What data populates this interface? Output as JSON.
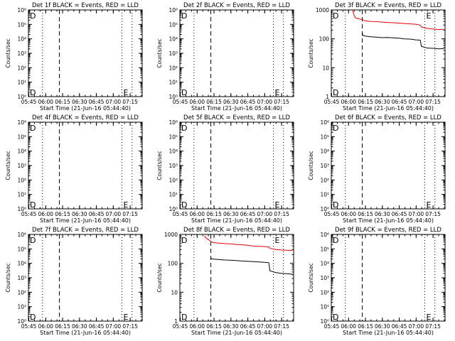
{
  "common": {
    "xlabel": "Start Time (21-Jun-16 05:44:40)",
    "ylabel": "Counts/sec",
    "xticks": [
      "05:45",
      "06:00",
      "06:15",
      "06:30",
      "06:45",
      "07:00",
      "07:15"
    ],
    "xtick_minutes": [
      0.33,
      15.33,
      30.33,
      45.33,
      60.33,
      75.33,
      90.33
    ],
    "xlim_minutes": [
      0,
      101
    ],
    "log_ticks_exponent": [
      "10⁰",
      "10¹",
      "10²",
      "10³",
      "10⁴",
      "10⁵",
      "10⁶"
    ],
    "log_ticks_plain": [
      "1",
      "10",
      "100",
      "1000"
    ],
    "marker_D": "D",
    "marker_E": "E",
    "colors": {
      "events": "#000000",
      "lld": "#dd0000",
      "axes": "#000000"
    },
    "vlines_dotted_minutes": [
      12.5,
      83.0,
      92.0
    ],
    "vline_dashed_minute": 27.5
  },
  "chart_data": [
    {
      "type": "line",
      "title": "Det 1f BLACK = Events, RED = LLD",
      "yscale": "log",
      "ylim": [
        1,
        1000000
      ],
      "tick_style": "exponent",
      "series": []
    },
    {
      "type": "line",
      "title": "Det 2f BLACK = Events, RED = LLD",
      "yscale": "log",
      "ylim": [
        1,
        1000000
      ],
      "tick_style": "exponent",
      "series": []
    },
    {
      "type": "line",
      "title": "Det 3f BLACK = Events, RED = LLD",
      "yscale": "log",
      "ylim": [
        1,
        1000
      ],
      "tick_style": "plain",
      "series": [
        {
          "color": "#000000",
          "x": [
            27.5,
            28,
            30,
            35,
            40,
            45,
            50,
            55,
            60,
            65,
            70,
            75,
            79,
            80,
            85,
            90,
            95,
            100
          ],
          "y": [
            160,
            130,
            125,
            118,
            115,
            110,
            112,
            108,
            105,
            100,
            98,
            92,
            90,
            55,
            48,
            47,
            45,
            46
          ]
        },
        {
          "color": "#dd0000",
          "x": [
            19,
            20,
            21,
            22,
            24,
            26,
            27.5,
            30,
            35,
            40,
            45,
            50,
            55,
            60,
            65,
            70,
            75,
            79,
            80,
            85,
            90,
            95,
            100
          ],
          "y": [
            950,
            700,
            560,
            520,
            500,
            480,
            460,
            420,
            400,
            395,
            380,
            370,
            360,
            350,
            340,
            330,
            320,
            300,
            260,
            230,
            220,
            210,
            215
          ]
        }
      ]
    },
    {
      "type": "line",
      "title": "Det 4f BLACK = Events, RED = LLD",
      "yscale": "log",
      "ylim": [
        1,
        1000000
      ],
      "tick_style": "exponent",
      "series": []
    },
    {
      "type": "line",
      "title": "Det 5f BLACK = Events, RED = LLD",
      "yscale": "log",
      "ylim": [
        1,
        1000000
      ],
      "tick_style": "exponent",
      "series": []
    },
    {
      "type": "line",
      "title": "Det 6f BLACK = Events, RED = LLD",
      "yscale": "log",
      "ylim": [
        1,
        1000000
      ],
      "tick_style": "exponent",
      "series": []
    },
    {
      "type": "line",
      "title": "Det 7f BLACK = Events, RED = LLD",
      "yscale": "log",
      "ylim": [
        1,
        1000000
      ],
      "tick_style": "exponent",
      "series": []
    },
    {
      "type": "line",
      "title": "Det 8f BLACK = Events, RED = LLD",
      "yscale": "log",
      "ylim": [
        1,
        1000
      ],
      "tick_style": "plain",
      "series": [
        {
          "color": "#000000",
          "x": [
            27.5,
            28,
            30,
            35,
            40,
            45,
            50,
            55,
            60,
            65,
            70,
            75,
            79,
            80,
            85,
            90,
            95,
            100
          ],
          "y": [
            150,
            145,
            140,
            135,
            130,
            128,
            125,
            120,
            118,
            115,
            112,
            108,
            105,
            55,
            48,
            45,
            44,
            42
          ]
        },
        {
          "color": "#dd0000",
          "x": [
            22,
            22.5,
            24,
            26,
            27.5,
            30,
            35,
            40,
            45,
            50,
            55,
            60,
            65,
            70,
            75,
            79,
            80,
            85,
            90,
            95,
            100
          ],
          "y": [
            900,
            800,
            720,
            640,
            560,
            520,
            500,
            480,
            470,
            450,
            440,
            420,
            400,
            390,
            380,
            370,
            330,
            300,
            290,
            285,
            280
          ]
        }
      ]
    },
    {
      "type": "line",
      "title": "Det 9f BLACK = Events, RED = LLD",
      "yscale": "log",
      "ylim": [
        1,
        1000000
      ],
      "tick_style": "exponent",
      "series": []
    }
  ]
}
